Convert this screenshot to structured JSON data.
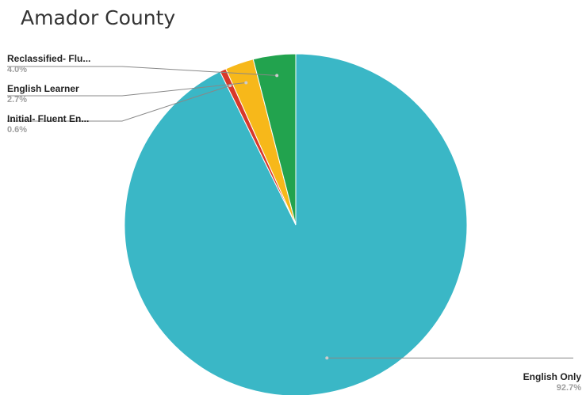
{
  "chart_data": {
    "type": "pie",
    "title": "Amador County",
    "slices": [
      {
        "label": "English Only",
        "display_label": "English Only",
        "value": 92.7,
        "percent_label": "92.7%",
        "color": "#3ab7c6"
      },
      {
        "label": "Initial- Fluent English Proficient",
        "display_label": "Initial- Fluent En...",
        "value": 0.6,
        "percent_label": "0.6%",
        "color": "#d8382b"
      },
      {
        "label": "English Learner",
        "display_label": "English Learner",
        "value": 2.7,
        "percent_label": "2.7%",
        "color": "#f7b81a"
      },
      {
        "label": "Reclassified- Fluent English Proficient",
        "display_label": "Reclassified- Flu...",
        "value": 4.0,
        "percent_label": "4.0%",
        "color": "#22a34e"
      }
    ],
    "legend": "none"
  }
}
